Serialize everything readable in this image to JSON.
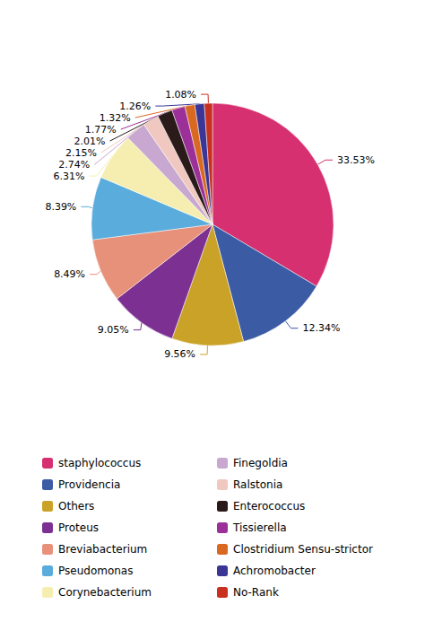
{
  "chart_data": {
    "type": "pie",
    "categories": [
      "staphylococcus",
      "Providencia",
      "Others",
      "Proteus",
      "Breviabacterium",
      "Pseudomonas",
      "Corynebacterium",
      "Finegoldia",
      "Ralstonia",
      "Enterococcus",
      "Tissierella",
      "Clostridium Sensu-strictor",
      "Achromobacter",
      "No-Rank"
    ],
    "values": [
      33.53,
      12.34,
      9.56,
      9.05,
      8.49,
      8.39,
      6.31,
      2.74,
      2.15,
      2.01,
      1.77,
      1.32,
      1.26,
      1.08
    ],
    "value_labels": [
      "33.53%",
      "12.34%",
      "9.56%",
      "9.05%",
      "8.49%",
      "8.39%",
      "6.31%",
      "2.74%",
      "2.15%",
      "2.01%",
      "1.77%",
      "1.32%",
      "1.26%",
      "1.08%"
    ],
    "colors": [
      "#D63070",
      "#3B5BA5",
      "#C9A227",
      "#7B3092",
      "#E8917A",
      "#5AACDC",
      "#F5EEB0",
      "#C8A8D0",
      "#F0C8C0",
      "#2A1A1A",
      "#9B3099",
      "#D96820",
      "#3B3595",
      "#C83020"
    ],
    "data_labels": true,
    "legend": "bottom"
  }
}
